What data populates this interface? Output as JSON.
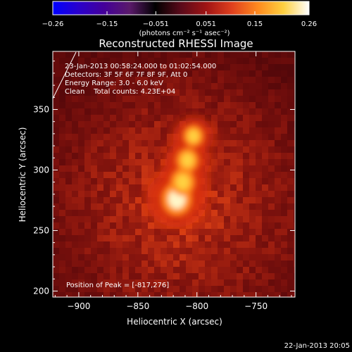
{
  "chart_data": {
    "type": "heatmap",
    "title": "Reconstructed RHESSI Image",
    "xlabel": "Heliocentric X (arcsec)",
    "ylabel": "Heliocentric Y (arcsec)",
    "xlim": [
      -922,
      -717
    ],
    "ylim": [
      195,
      398
    ],
    "x_ticks": [
      -900,
      -850,
      -800,
      -750
    ],
    "x_tick_labels": [
      "−900",
      "−850",
      "−800",
      "−750"
    ],
    "y_ticks": [
      200,
      250,
      300,
      350
    ],
    "y_tick_labels": [
      "200",
      "250",
      "300",
      "350"
    ],
    "colorbar": {
      "min": -0.26,
      "max": 0.26,
      "ticks": [
        -0.26,
        -0.15,
        -0.051,
        0.051,
        0.15,
        0.26
      ],
      "tick_labels": [
        "−0.26",
        "−0.15",
        "−0.051",
        "0.051",
        "0.15",
        "0.26"
      ],
      "unit_label": "(photons cm⁻² s⁻¹ asec⁻²)",
      "stops": [
        "#0000ff",
        "#2a00cc",
        "#440099",
        "#5a1a6a",
        "#000000",
        "#5a0a1a",
        "#a01414",
        "#e0401e",
        "#ff8a1e",
        "#ffd040",
        "#ffffff"
      ]
    },
    "annotations": [
      "23-Jan-2013 00:58:24.000 to 01:02:54.000",
      "Detectors: 3F 5F 6F 7F 8F 9F, Att 0",
      "Energy Range: 3.0 - 6.0 keV",
      "Clean    Total counts: 4.23E+04"
    ],
    "peak_label": "Position of Peak = [-817,276]",
    "peak": [
      -817,
      276
    ],
    "emission_sources": [
      {
        "x": -817,
        "y": 276,
        "intensity": 1.0
      },
      {
        "x": -812,
        "y": 290,
        "intensity": 0.75
      },
      {
        "x": -808,
        "y": 308,
        "intensity": 0.65
      },
      {
        "x": -803,
        "y": 328,
        "intensity": 0.55
      }
    ]
  },
  "footer": {
    "date": "22-Jan-2013 20:05"
  }
}
